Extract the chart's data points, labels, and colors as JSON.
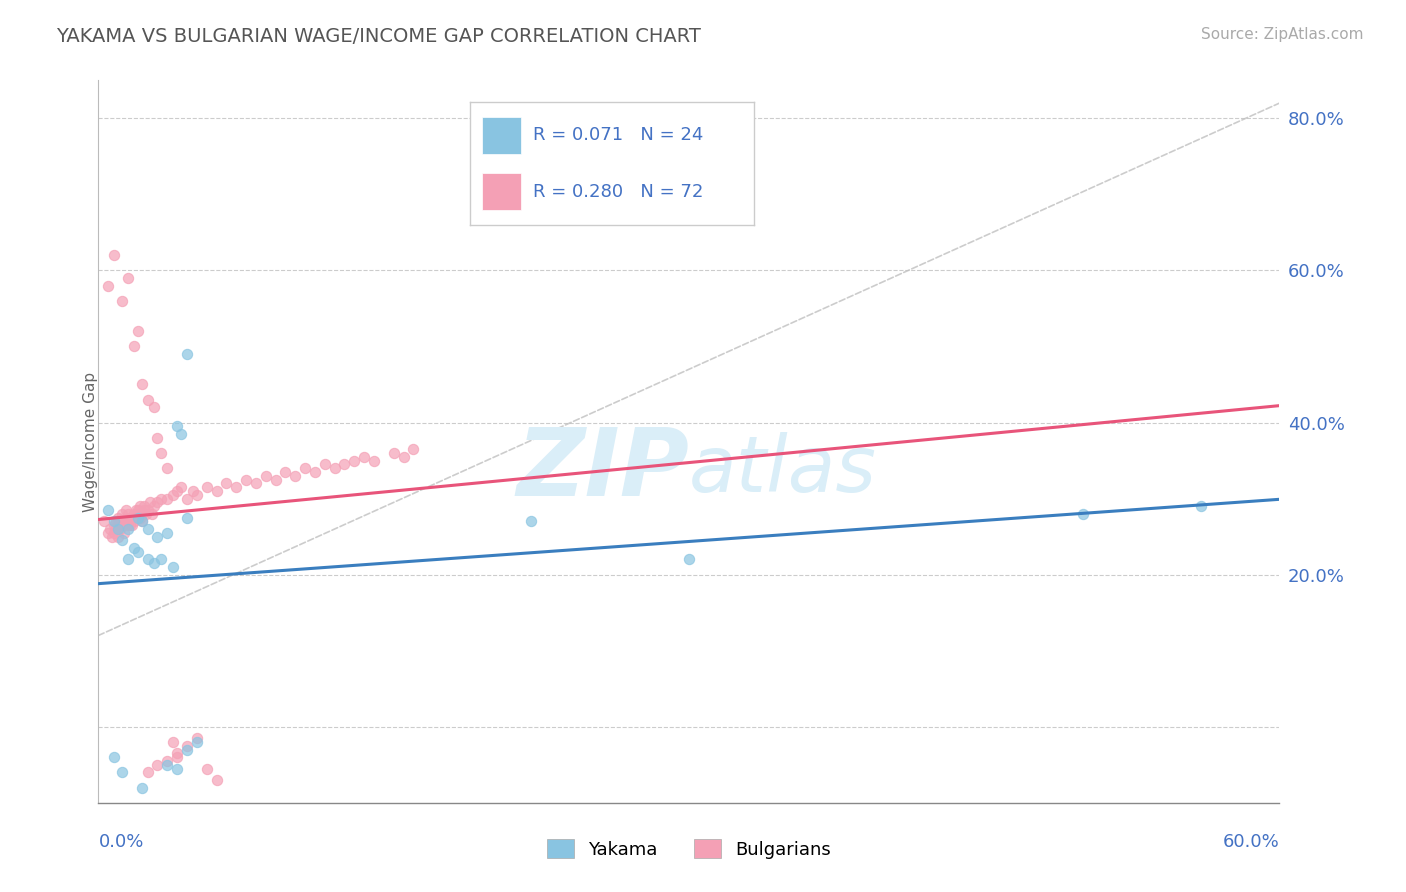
{
  "title": "YAKAMA VS BULGARIAN WAGE/INCOME GAP CORRELATION CHART",
  "source_text": "Source: ZipAtlas.com",
  "xmin": 0.0,
  "xmax": 0.6,
  "ymin": -0.1,
  "ymax": 0.85,
  "ylabel_ticks": [
    0.0,
    0.2,
    0.4,
    0.6,
    0.8
  ],
  "ylabel_labels": [
    "",
    "20.0%",
    "40.0%",
    "60.0%",
    "80.0%"
  ],
  "legend_r1": "R = 0.071",
  "legend_n1": "N = 24",
  "legend_r2": "R = 0.280",
  "legend_n2": "N = 72",
  "yakama_color": "#89c4e1",
  "bulgarian_color": "#f4a0b5",
  "yakama_line_color": "#3a7ebf",
  "bulgarian_line_color": "#e8547a",
  "watermark_text": "ZIPatlas",
  "watermark_color": "#daeef8",
  "title_color": "#555555",
  "axis_label_color": "#4472c4",
  "grid_color": "#cccccc",
  "background_color": "#ffffff",
  "yakama_x": [
    0.005,
    0.008,
    0.01,
    0.012,
    0.015,
    0.015,
    0.018,
    0.02,
    0.02,
    0.022,
    0.025,
    0.025,
    0.028,
    0.03,
    0.032,
    0.035,
    0.038,
    0.04,
    0.042,
    0.045,
    0.22,
    0.3,
    0.5,
    0.56
  ],
  "yakama_y": [
    0.285,
    0.27,
    0.26,
    0.245,
    0.26,
    0.22,
    0.235,
    0.275,
    0.23,
    0.27,
    0.26,
    0.22,
    0.215,
    0.25,
    0.22,
    0.255,
    0.21,
    0.395,
    0.385,
    0.275,
    0.27,
    0.22,
    0.28,
    0.29
  ],
  "bulgarian_x": [
    0.003,
    0.005,
    0.006,
    0.007,
    0.008,
    0.008,
    0.009,
    0.009,
    0.01,
    0.01,
    0.01,
    0.011,
    0.012,
    0.012,
    0.013,
    0.013,
    0.014,
    0.014,
    0.015,
    0.015,
    0.015,
    0.016,
    0.016,
    0.017,
    0.017,
    0.018,
    0.018,
    0.019,
    0.019,
    0.02,
    0.02,
    0.021,
    0.021,
    0.022,
    0.022,
    0.023,
    0.023,
    0.024,
    0.025,
    0.026,
    0.027,
    0.028,
    0.03,
    0.032,
    0.035,
    0.038,
    0.04,
    0.042,
    0.045,
    0.048,
    0.05,
    0.055,
    0.06,
    0.065,
    0.07,
    0.075,
    0.08,
    0.085,
    0.09,
    0.095,
    0.1,
    0.105,
    0.11,
    0.115,
    0.12,
    0.125,
    0.13,
    0.135,
    0.14,
    0.15,
    0.155,
    0.16
  ],
  "bulgarian_y": [
    0.27,
    0.255,
    0.26,
    0.25,
    0.265,
    0.255,
    0.27,
    0.26,
    0.265,
    0.25,
    0.275,
    0.26,
    0.27,
    0.28,
    0.265,
    0.255,
    0.27,
    0.285,
    0.265,
    0.28,
    0.27,
    0.265,
    0.275,
    0.275,
    0.265,
    0.28,
    0.27,
    0.285,
    0.275,
    0.285,
    0.28,
    0.29,
    0.275,
    0.28,
    0.27,
    0.285,
    0.29,
    0.28,
    0.285,
    0.295,
    0.28,
    0.29,
    0.295,
    0.3,
    0.3,
    0.305,
    0.31,
    0.315,
    0.3,
    0.31,
    0.305,
    0.315,
    0.31,
    0.32,
    0.315,
    0.325,
    0.32,
    0.33,
    0.325,
    0.335,
    0.33,
    0.34,
    0.335,
    0.345,
    0.34,
    0.345,
    0.35,
    0.355,
    0.35,
    0.36,
    0.355,
    0.365
  ],
  "bulgarian_outlier_x": [
    0.005,
    0.008,
    0.012,
    0.015,
    0.018,
    0.02,
    0.022,
    0.025,
    0.028,
    0.03,
    0.032,
    0.035,
    0.038,
    0.04,
    0.025,
    0.03,
    0.035,
    0.04,
    0.045,
    0.05,
    0.055,
    0.06
  ],
  "bulgarian_outlier_y": [
    0.58,
    0.62,
    0.56,
    0.59,
    0.5,
    0.52,
    0.45,
    0.43,
    0.42,
    0.38,
    0.36,
    0.34,
    -0.02,
    -0.04,
    -0.06,
    -0.05,
    -0.045,
    -0.035,
    -0.025,
    -0.015,
    -0.055,
    -0.07
  ],
  "yakama_outlier_x": [
    0.008,
    0.012,
    0.022,
    0.035,
    0.04,
    0.045,
    0.05,
    0.045
  ],
  "yakama_outlier_y": [
    -0.04,
    -0.06,
    -0.08,
    -0.05,
    -0.055,
    -0.03,
    -0.02,
    0.49
  ]
}
